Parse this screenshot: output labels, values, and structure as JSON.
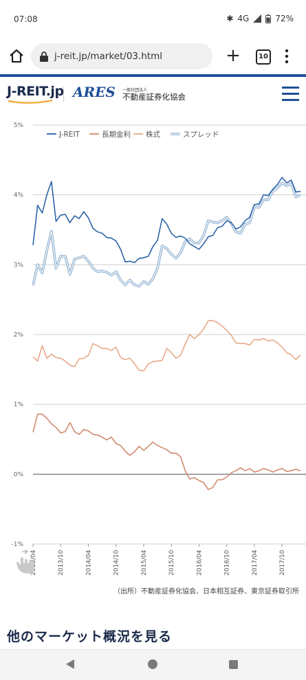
{
  "status": {
    "time": "07:08",
    "network": "4G",
    "battery": "72%"
  },
  "browser": {
    "url": "j-reit.jp/market/03.html",
    "tab_count": "10"
  },
  "header": {
    "jreit_logo": "J-REIT.jp",
    "ares_logo": "ARES",
    "org_small": "一般社団法人",
    "org_name": "不動産証券化協会"
  },
  "chart_data": {
    "type": "line",
    "y_unit": "%",
    "ylim": [
      -1,
      5
    ],
    "yticks": [
      "5%",
      "4%",
      "3%",
      "2%",
      "1%",
      "0%",
      "-1%"
    ],
    "yvals": [
      5,
      4,
      3,
      2,
      1,
      0,
      -1
    ],
    "xlabels": [
      "2013/04",
      "2013/10",
      "2014/04",
      "2014/10",
      "2015/04",
      "2015/10",
      "2016/04",
      "2016/10",
      "2017/04",
      "2017/10"
    ],
    "legend": [
      "J-REIT",
      "長期金利",
      "株式",
      "スプレッド"
    ],
    "colors": {
      "jreit": "#2c64a8",
      "jgb": "#d08a6e",
      "stock": "#e8a989",
      "spread": "#8fb0cf"
    },
    "series": {
      "jreit": [
        3.28,
        3.85,
        3.74,
        4.0,
        4.19,
        3.62,
        3.71,
        3.72,
        3.6,
        3.7,
        3.66,
        3.76,
        3.67,
        3.52,
        3.47,
        3.45,
        3.39,
        3.38,
        3.34,
        3.22,
        3.04,
        3.05,
        3.03,
        3.09,
        3.1,
        3.12,
        3.26,
        3.35,
        3.66,
        3.58,
        3.45,
        3.39,
        3.41,
        3.38,
        3.3,
        3.26,
        3.22,
        3.3,
        3.4,
        3.42,
        3.53,
        3.55,
        3.63,
        3.6,
        3.51,
        3.54,
        3.63,
        3.68,
        3.86,
        3.87,
        4.0,
        3.99,
        4.08,
        4.15,
        4.25,
        4.17,
        4.21,
        4.04,
        4.05
      ],
      "jgb": [
        0.6,
        0.86,
        0.86,
        0.8,
        0.72,
        0.67,
        0.59,
        0.61,
        0.74,
        0.61,
        0.57,
        0.64,
        0.62,
        0.57,
        0.56,
        0.53,
        0.49,
        0.53,
        0.44,
        0.41,
        0.33,
        0.27,
        0.32,
        0.4,
        0.34,
        0.4,
        0.46,
        0.41,
        0.38,
        0.35,
        0.3,
        0.3,
        0.25,
        0.05,
        -0.07,
        -0.05,
        -0.09,
        -0.12,
        -0.22,
        -0.19,
        -0.08,
        -0.08,
        -0.04,
        0.02,
        0.05,
        0.09,
        0.05,
        0.08,
        0.03,
        0.05,
        0.08,
        0.06,
        0.03,
        0.06,
        0.08,
        0.04,
        0.05,
        0.07,
        0.05
      ],
      "stock": [
        1.68,
        1.62,
        1.84,
        1.66,
        1.72,
        1.67,
        1.66,
        1.62,
        1.56,
        1.54,
        1.65,
        1.66,
        1.7,
        1.87,
        1.84,
        1.8,
        1.8,
        1.77,
        1.82,
        1.67,
        1.64,
        1.66,
        1.58,
        1.49,
        1.48,
        1.58,
        1.61,
        1.62,
        1.63,
        1.8,
        1.74,
        1.66,
        1.7,
        1.86,
        2.0,
        1.94,
        2.0,
        2.08,
        2.2,
        2.2,
        2.17,
        2.12,
        2.06,
        1.99,
        1.88,
        1.87,
        1.87,
        1.85,
        1.93,
        1.92,
        1.94,
        1.91,
        1.92,
        1.88,
        1.82,
        1.74,
        1.71,
        1.64,
        1.71
      ],
      "spread": [
        2.7,
        3.0,
        2.88,
        3.2,
        3.48,
        2.95,
        3.12,
        3.12,
        2.86,
        3.08,
        3.1,
        3.12,
        3.05,
        2.95,
        2.9,
        2.91,
        2.89,
        2.85,
        2.9,
        2.78,
        2.71,
        2.78,
        2.71,
        2.69,
        2.76,
        2.72,
        2.8,
        2.95,
        3.27,
        3.23,
        3.15,
        3.09,
        3.17,
        3.33,
        3.37,
        3.31,
        3.31,
        3.42,
        3.63,
        3.61,
        3.6,
        3.63,
        3.68,
        3.59,
        3.47,
        3.45,
        3.58,
        3.6,
        3.83,
        3.82,
        3.93,
        3.93,
        4.05,
        4.1,
        4.17,
        4.13,
        4.16,
        3.97,
        4.0
      ]
    }
  },
  "source_note": "（出所）不動産証券化協会、日本相互証券、東京証券取引所",
  "more_link": "他のマーケット概況を見る"
}
